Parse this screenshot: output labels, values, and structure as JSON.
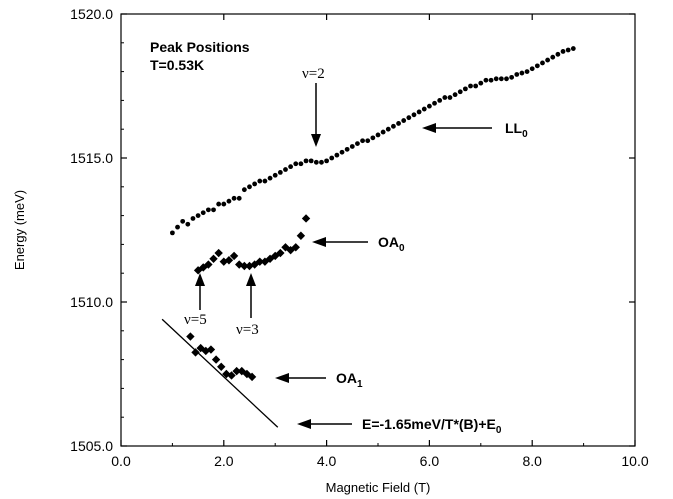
{
  "chart_data": {
    "type": "scatter",
    "xlabel": "Magnetic Field (T)",
    "ylabel": "Energy (meV)",
    "xlim": [
      0.0,
      10.0
    ],
    "ylim": [
      1505.0,
      1520.0
    ],
    "x_ticks": [
      "0.0",
      "2.0",
      "4.0",
      "6.0",
      "8.0",
      "10.0"
    ],
    "y_ticks": [
      "1505.0",
      "1510.0",
      "1515.0",
      "1520.0"
    ],
    "annotation_title": "Peak Positions",
    "annotation_temp": "T=0.53K",
    "grid": false,
    "series": [
      {
        "name": "LL0",
        "marker": "circle",
        "x": [
          1.0,
          1.1,
          1.2,
          1.3,
          1.4,
          1.5,
          1.6,
          1.7,
          1.8,
          1.9,
          2.0,
          2.1,
          2.2,
          2.3,
          2.4,
          2.5,
          2.6,
          2.7,
          2.8,
          2.9,
          3.0,
          3.1,
          3.2,
          3.3,
          3.4,
          3.5,
          3.6,
          3.7,
          3.8,
          3.9,
          4.0,
          4.1,
          4.2,
          4.3,
          4.4,
          4.5,
          4.6,
          4.7,
          4.8,
          4.9,
          5.0,
          5.1,
          5.2,
          5.3,
          5.4,
          5.5,
          5.6,
          5.7,
          5.8,
          5.9,
          6.0,
          6.1,
          6.2,
          6.3,
          6.4,
          6.5,
          6.6,
          6.7,
          6.8,
          6.9,
          7.0,
          7.1,
          7.2,
          7.3,
          7.4,
          7.5,
          7.6,
          7.7,
          7.8,
          7.9,
          8.0,
          8.1,
          8.2,
          8.3,
          8.4,
          8.5,
          8.6,
          8.7,
          8.8
        ],
        "y": [
          1512.4,
          1512.6,
          1512.8,
          1512.7,
          1512.9,
          1513.0,
          1513.1,
          1513.2,
          1513.2,
          1513.4,
          1513.4,
          1513.5,
          1513.6,
          1513.6,
          1513.9,
          1514.0,
          1514.1,
          1514.2,
          1514.2,
          1514.3,
          1514.4,
          1514.5,
          1514.6,
          1514.7,
          1514.8,
          1514.8,
          1514.9,
          1514.9,
          1514.85,
          1514.85,
          1514.9,
          1515.0,
          1515.1,
          1515.2,
          1515.3,
          1515.4,
          1515.5,
          1515.6,
          1515.6,
          1515.7,
          1515.8,
          1515.9,
          1516.0,
          1516.1,
          1516.2,
          1516.3,
          1516.4,
          1516.5,
          1516.6,
          1516.7,
          1516.8,
          1516.9,
          1517.0,
          1517.1,
          1517.1,
          1517.2,
          1517.3,
          1517.4,
          1517.5,
          1517.5,
          1517.6,
          1517.7,
          1517.7,
          1517.75,
          1517.75,
          1517.75,
          1517.8,
          1517.9,
          1517.95,
          1518.0,
          1518.1,
          1518.2,
          1518.3,
          1518.4,
          1518.5,
          1518.6,
          1518.7,
          1518.75,
          1518.8
        ]
      },
      {
        "name": "OA0",
        "marker": "diamond",
        "x": [
          1.5,
          1.6,
          1.7,
          1.8,
          1.9,
          2.0,
          2.1,
          2.2,
          2.3,
          2.4,
          2.5,
          2.6,
          2.7,
          2.8,
          2.9,
          3.0,
          3.1,
          3.2,
          3.3,
          3.4,
          3.5,
          3.6
        ],
        "y": [
          1511.1,
          1511.2,
          1511.3,
          1511.5,
          1511.7,
          1511.4,
          1511.45,
          1511.6,
          1511.3,
          1511.25,
          1511.25,
          1511.3,
          1511.4,
          1511.4,
          1511.5,
          1511.6,
          1511.7,
          1511.9,
          1511.8,
          1511.9,
          1512.3,
          1512.9
        ]
      },
      {
        "name": "OA1",
        "marker": "diamond",
        "x": [
          1.35,
          1.45,
          1.55,
          1.65,
          1.75,
          1.85,
          1.95,
          2.05,
          2.15,
          2.25,
          2.35,
          2.45,
          2.55
        ],
        "y": [
          1508.8,
          1508.25,
          1508.4,
          1508.3,
          1508.35,
          1508.0,
          1507.75,
          1507.5,
          1507.45,
          1507.6,
          1507.6,
          1507.5,
          1507.4
        ]
      }
    ],
    "fit_line": {
      "x": [
        0.8,
        3.05
      ],
      "y": [
        1509.4,
        1505.65
      ]
    },
    "annotations": {
      "nu2": "ν=2",
      "nu3": "ν=3",
      "nu5": "ν=5",
      "ll0": {
        "main": "LL",
        "sub": "0"
      },
      "oa0": {
        "main": "OA",
        "sub": "0"
      },
      "oa1": {
        "main": "OA",
        "sub": "1"
      },
      "fit": {
        "main": "E=-1.65meV/T*(B)+E",
        "sub": "0"
      }
    }
  }
}
